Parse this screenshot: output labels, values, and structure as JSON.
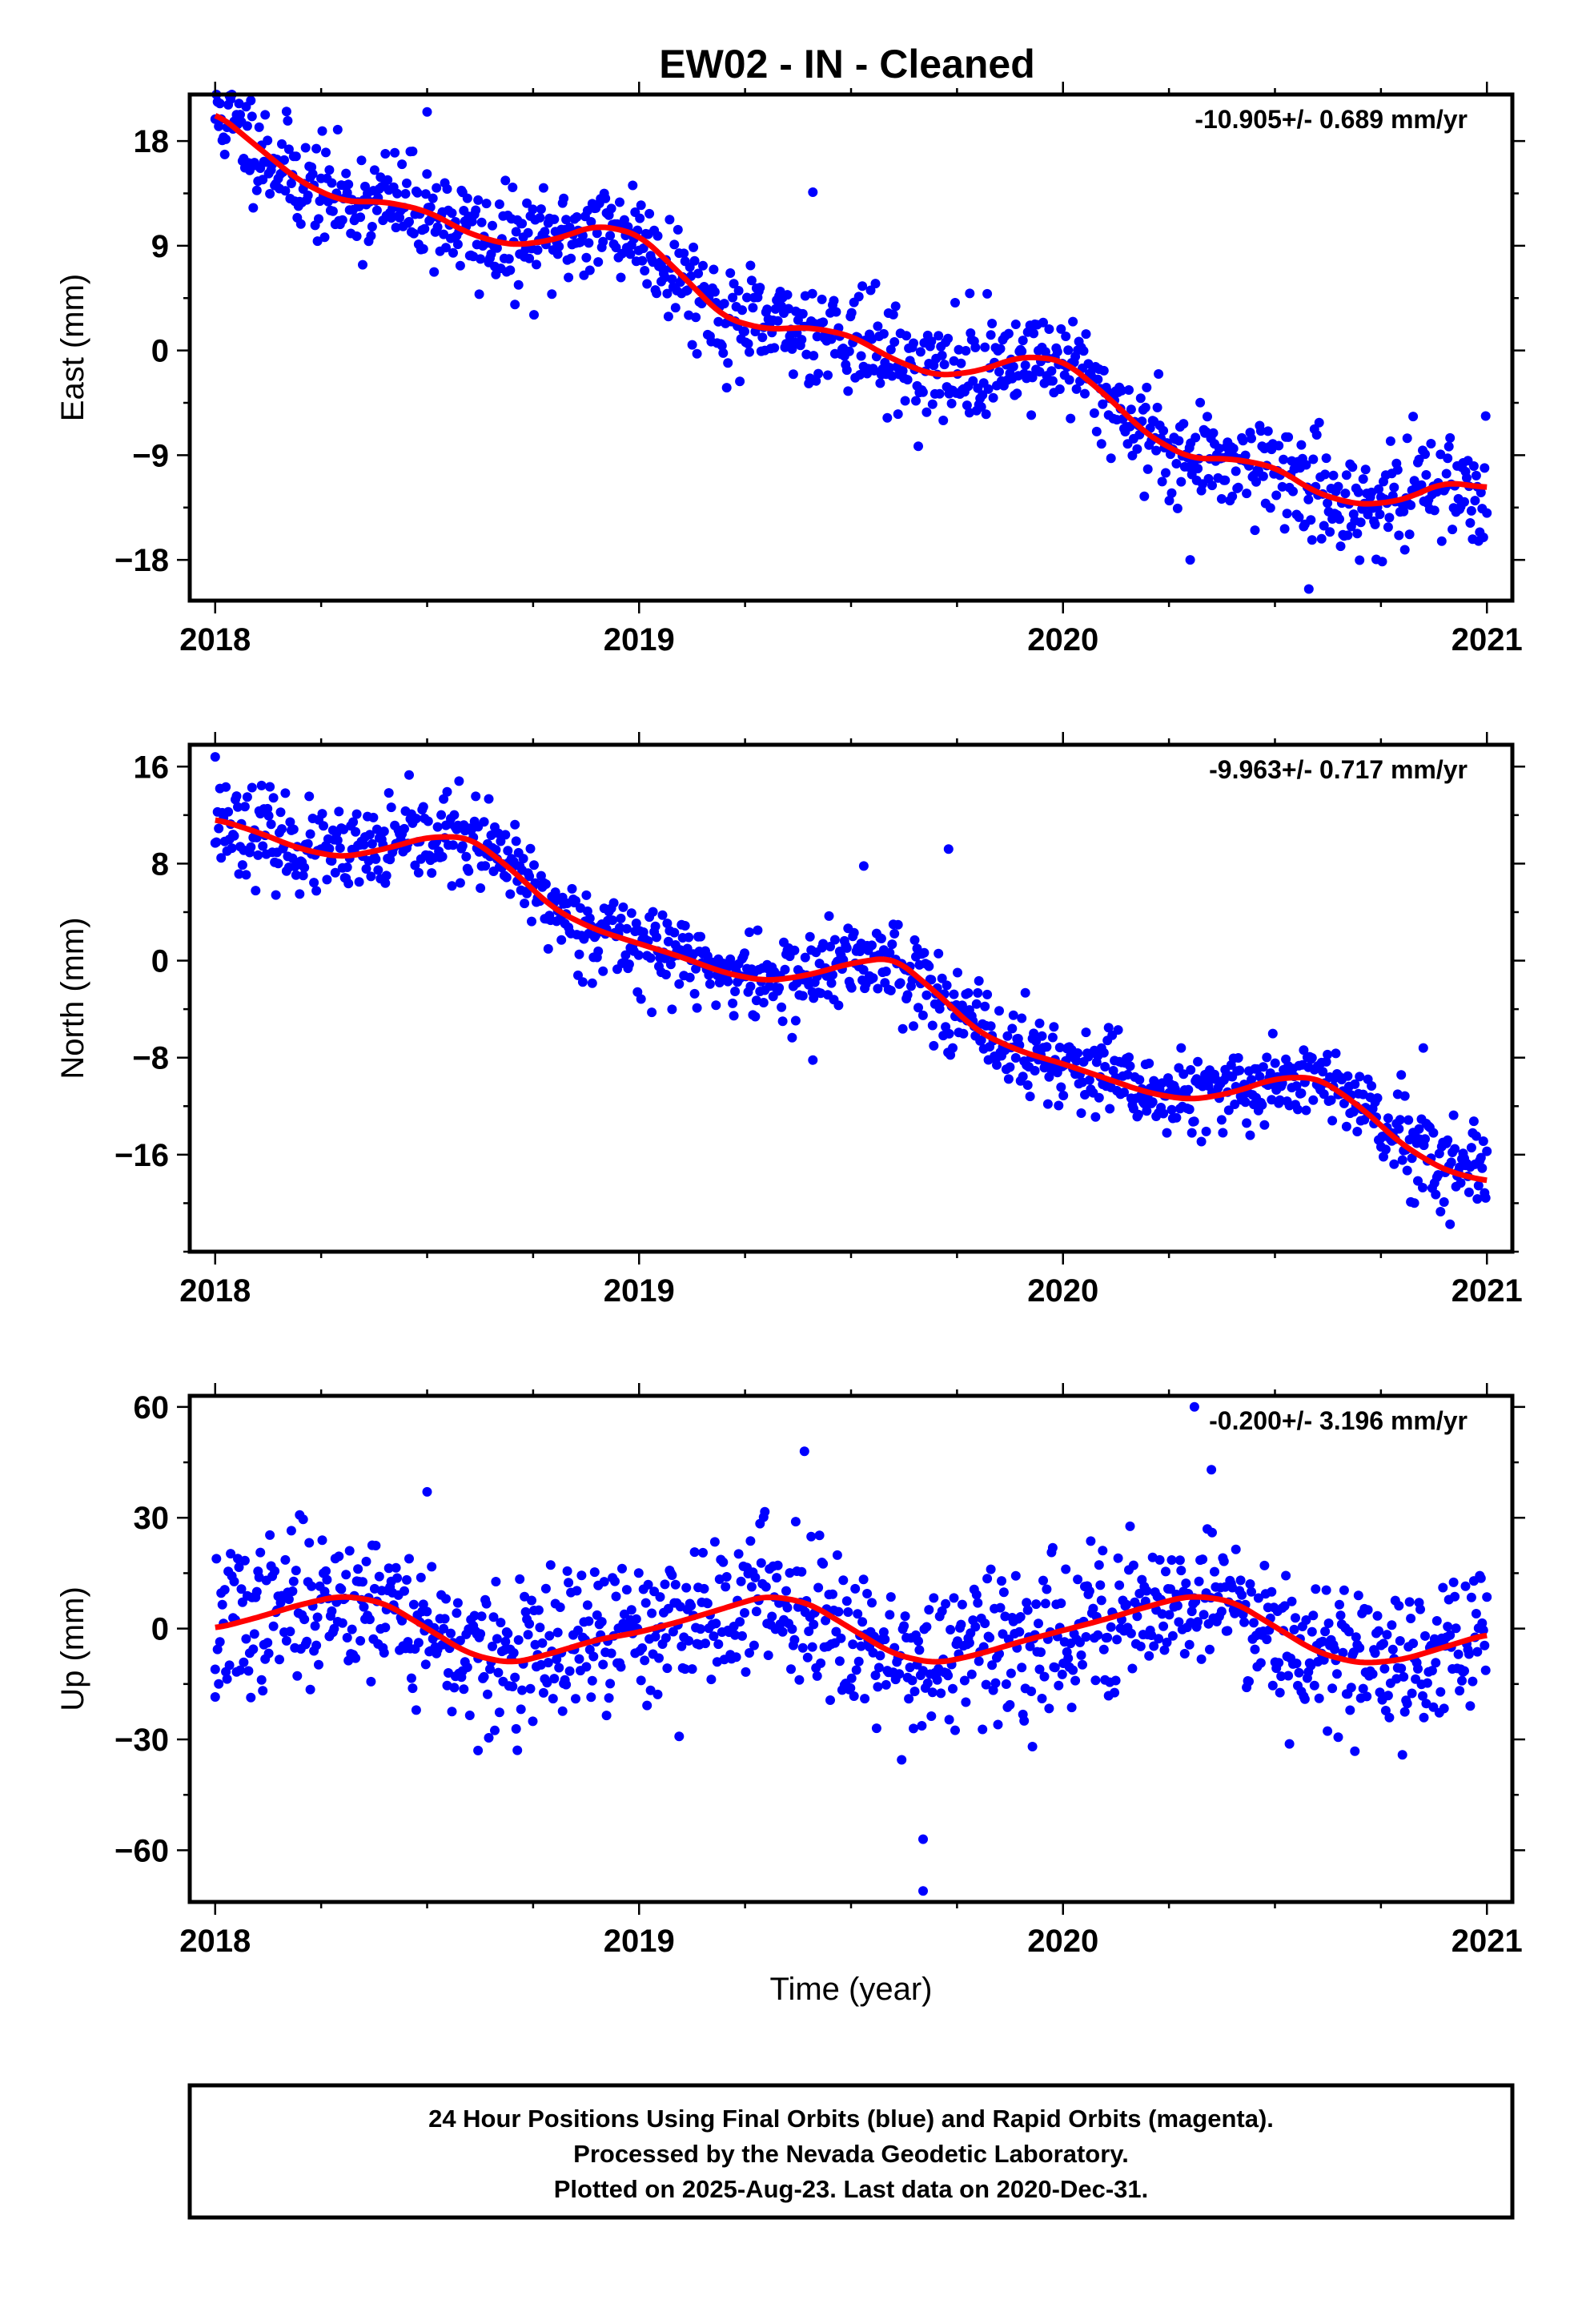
{
  "title": "EW02  - IN - Cleaned",
  "colors": {
    "points": "#0000ff",
    "model": "#ff0000",
    "frame": "#000000"
  },
  "chart_data": [
    {
      "type": "scatter",
      "name": "east",
      "ylabel": "East (mm)",
      "xlabel": "",
      "rate_label": "-10.905+/- 0.689 mm/yr",
      "xlim": [
        2017.94,
        2021.06
      ],
      "ylim": [
        -21.5,
        22
      ],
      "x_ticks": [
        2018,
        2019,
        2020,
        2021
      ],
      "x_tick_labels": [
        "2018",
        "2019",
        "2020",
        "2021"
      ],
      "y_ticks": [
        18,
        9,
        0,
        -9,
        -18
      ],
      "y_tick_labels": [
        "18",
        "9",
        "0",
        "−9",
        "−18"
      ],
      "model": {
        "x": [
          2018.0,
          2018.1,
          2018.2,
          2018.3,
          2018.4,
          2018.5,
          2018.6,
          2018.7,
          2018.8,
          2018.9,
          2019.0,
          2019.1,
          2019.2,
          2019.3,
          2019.4,
          2019.5,
          2019.6,
          2019.7,
          2019.8,
          2019.9,
          2020.0,
          2020.1,
          2020.2,
          2020.3,
          2020.4,
          2020.5,
          2020.6,
          2020.7,
          2020.8,
          2020.9,
          2021.0
        ],
        "y": [
          20.5,
          17.5,
          14.5,
          12.8,
          12.8,
          12.0,
          10.0,
          9.0,
          9.5,
          10.8,
          10.0,
          6.5,
          2.8,
          1.8,
          2.0,
          1.3,
          -0.8,
          -2.2,
          -1.8,
          -0.5,
          -0.8,
          -3.8,
          -7.3,
          -9.3,
          -9.3,
          -10.0,
          -12.3,
          -13.3,
          -12.9,
          -11.3,
          -11.8
        ]
      },
      "points": {
        "n": 1070,
        "noise": 2.2,
        "seed": 11,
        "outliers": [
          [
            2018.5,
            20.5
          ],
          [
            2019.41,
            13.6
          ],
          [
            2020.58,
            -20.5
          ],
          [
            2019.78,
            4.9
          ],
          [
            2020.3,
            -18.0
          ]
        ]
      }
    },
    {
      "type": "scatter",
      "name": "north",
      "ylabel": "North (mm)",
      "xlabel": "",
      "rate_label": "-9.963+/- 0.717 mm/yr",
      "xlim": [
        2017.94,
        2021.06
      ],
      "ylim": [
        -24,
        17.8
      ],
      "x_ticks": [
        2018,
        2019,
        2020,
        2021
      ],
      "x_tick_labels": [
        "2018",
        "2019",
        "2020",
        "2021"
      ],
      "y_ticks": [
        16,
        8,
        0,
        -8,
        -16
      ],
      "y_tick_labels": [
        "16",
        "8",
        "0",
        "−8",
        "−16"
      ],
      "model": {
        "x": [
          2018.0,
          2018.1,
          2018.2,
          2018.3,
          2018.4,
          2018.5,
          2018.6,
          2018.7,
          2018.8,
          2018.9,
          2019.0,
          2019.1,
          2019.2,
          2019.3,
          2019.4,
          2019.5,
          2019.6,
          2019.7,
          2019.8,
          2019.9,
          2020.0,
          2020.1,
          2020.2,
          2020.3,
          2020.4,
          2020.5,
          2020.6,
          2020.7,
          2020.8,
          2020.9,
          2021.0
        ],
        "y": [
          11.7,
          10.6,
          9.2,
          8.5,
          9.2,
          10.2,
          10.2,
          7.5,
          4.2,
          2.5,
          1.4,
          0.3,
          -1.0,
          -1.7,
          -1.2,
          -0.2,
          0.3,
          -2.6,
          -5.9,
          -7.5,
          -8.5,
          -9.7,
          -10.9,
          -11.5,
          -10.9,
          -9.7,
          -9.6,
          -12.0,
          -15.2,
          -17.3,
          -18.2
        ]
      },
      "points": {
        "n": 1070,
        "noise": 1.8,
        "seed": 23,
        "outliers": [
          [
            2018.0,
            16.8
          ],
          [
            2019.73,
            9.2
          ],
          [
            2019.41,
            -8.2
          ],
          [
            2020.85,
            -7.2
          ],
          [
            2019.53,
            7.8
          ]
        ]
      }
    },
    {
      "type": "scatter",
      "name": "up",
      "ylabel": "Up (mm)",
      "xlabel": "Time (year)",
      "rate_label": "-0.200+/- 3.196 mm/yr",
      "xlim": [
        2017.94,
        2021.06
      ],
      "ylim": [
        -74,
        63
      ],
      "x_ticks": [
        2018,
        2019,
        2020,
        2021
      ],
      "x_tick_labels": [
        "2018",
        "2019",
        "2020",
        "2021"
      ],
      "y_ticks": [
        60,
        30,
        0,
        -30,
        -60
      ],
      "y_tick_labels": [
        "60",
        "30",
        "0",
        "−30",
        "−60"
      ],
      "model": {
        "x": [
          2018.0,
          2018.1,
          2018.2,
          2018.3,
          2018.4,
          2018.5,
          2018.6,
          2018.7,
          2018.8,
          2018.9,
          2019.0,
          2019.1,
          2019.2,
          2019.3,
          2019.4,
          2019.5,
          2019.6,
          2019.7,
          2019.8,
          2019.9,
          2020.0,
          2020.1,
          2020.2,
          2020.3,
          2020.4,
          2020.5,
          2020.6,
          2020.7,
          2020.8,
          2020.9,
          2021.0
        ],
        "y": [
          0.0,
          3.0,
          6.5,
          9.0,
          7.0,
          0.0,
          -7.0,
          -9.5,
          -6.5,
          -3.0,
          -1.0,
          2.0,
          5.5,
          9.0,
          7.0,
          0.0,
          -7.0,
          -9.5,
          -7.0,
          -3.5,
          -0.5,
          2.5,
          6.0,
          9.0,
          7.5,
          0.5,
          -6.5,
          -9.5,
          -8.5,
          -5.0,
          -1.5
        ]
      },
      "points": {
        "n": 1070,
        "noise": 10.0,
        "seed": 37,
        "outliers": [
          [
            2019.67,
            -71.0
          ],
          [
            2019.67,
            -57.0
          ],
          [
            2020.31,
            60.0
          ],
          [
            2019.39,
            48.0
          ],
          [
            2020.35,
            43.0
          ],
          [
            2018.5,
            37.0
          ],
          [
            2018.0,
            -18.5
          ],
          [
            2018.62,
            -33.0
          ]
        ]
      }
    }
  ],
  "footer": {
    "lines": [
      "24 Hour Positions Using Final Orbits (blue) and Rapid Orbits (magenta).",
      "Processed by the Nevada Geodetic Laboratory.",
      "Plotted on 2025-Aug-23. Last data on 2020-Dec-31."
    ]
  }
}
